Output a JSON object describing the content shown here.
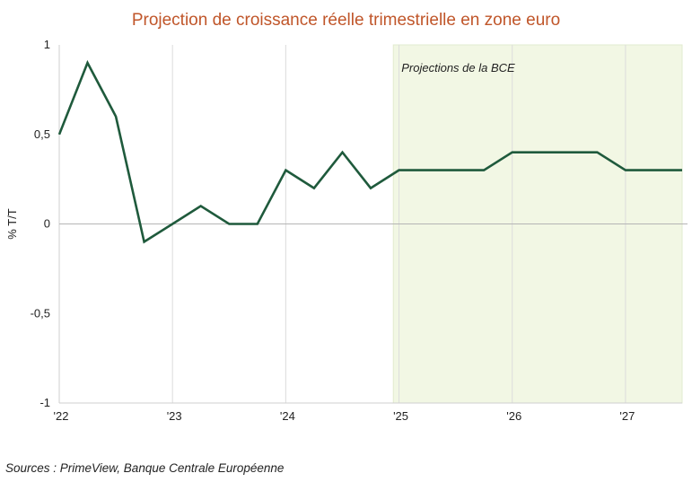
{
  "chart_data": {
    "type": "line",
    "title": "Projection de croissance réelle trimestrielle en zone euro",
    "ylabel": "% T/T",
    "xlabel": "",
    "ylim": [
      -1,
      1
    ],
    "y_ticks": [
      1,
      0.5,
      0,
      -0.5,
      -1
    ],
    "y_tick_labels": [
      "1",
      "0,5",
      "0",
      "-0,5",
      "-1"
    ],
    "x_range": [
      0,
      22
    ],
    "x_ticks": [
      0,
      4,
      8,
      12,
      16,
      20
    ],
    "x_tick_labels": [
      "'22",
      "'23",
      "'24",
      "'25",
      "'26",
      "'27"
    ],
    "grid": "vertical",
    "projection_band": {
      "from": 11.8,
      "to": 22,
      "label": "Projections de la BCE",
      "color": "#f2f7e4"
    },
    "series": [
      {
        "color": "#1f5a3c",
        "x": [
          0,
          1,
          2,
          3,
          4,
          5,
          6,
          7,
          8,
          9,
          10,
          11,
          12,
          13,
          14,
          15,
          16,
          17,
          18,
          19,
          20,
          21,
          22
        ],
        "values": [
          0.5,
          0.9,
          0.6,
          -0.1,
          0.0,
          0.1,
          0.0,
          0.0,
          0.3,
          0.2,
          0.4,
          0.2,
          0.3,
          0.3,
          0.3,
          0.3,
          0.4,
          0.4,
          0.4,
          0.4,
          0.3,
          0.3,
          0.3
        ]
      }
    ]
  },
  "source": "Sources : PrimeView, Banque Centrale Européenne"
}
